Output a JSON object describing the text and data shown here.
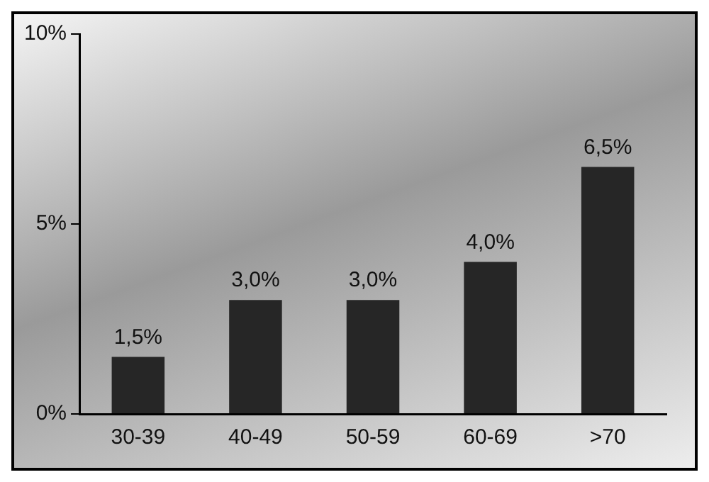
{
  "chart_data": {
    "type": "bar",
    "categories": [
      "30-39",
      "40-49",
      "50-59",
      "60-69",
      ">70"
    ],
    "values": [
      1.5,
      3.0,
      3.0,
      4.0,
      6.5
    ],
    "value_labels": [
      "1,5%",
      "3,0%",
      "3,0%",
      "4,0%",
      "6,5%"
    ],
    "color": "#262626",
    "ylim": [
      0,
      10
    ],
    "yticks": [
      {
        "value": 0,
        "label": "0%"
      },
      {
        "value": 5,
        "label": "5%"
      },
      {
        "value": 10,
        "label": "10%"
      }
    ],
    "grid": false,
    "legend": false
  }
}
